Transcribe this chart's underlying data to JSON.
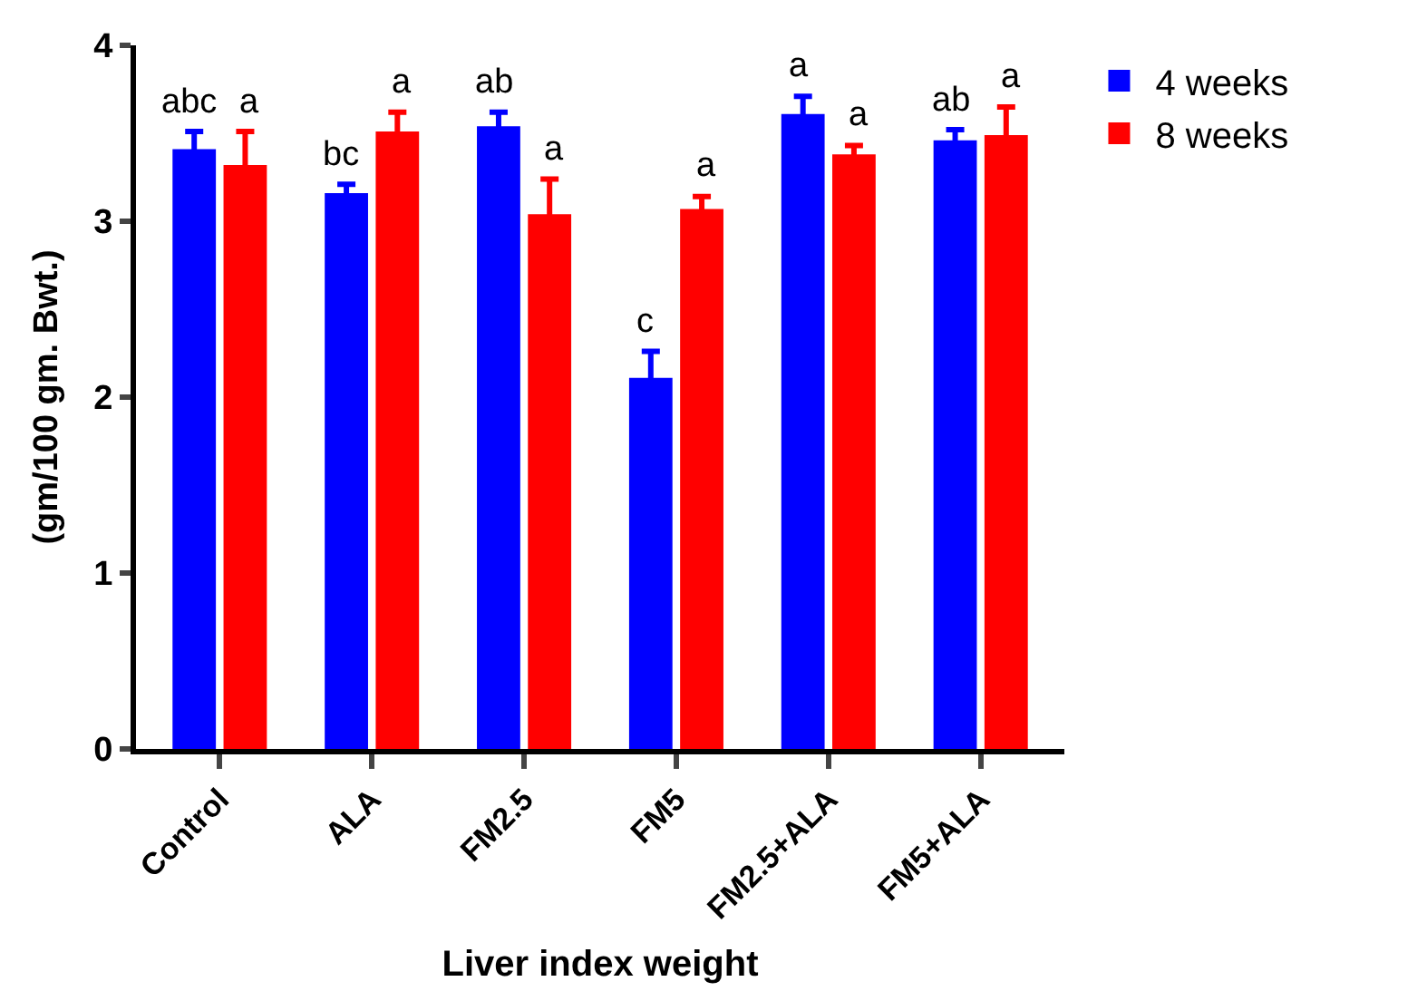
{
  "chart_data": {
    "type": "bar",
    "xlabel": "Liver index weight",
    "ylabel": "(gm/100 gm. Bwt.)",
    "categories": [
      "Control",
      "ALA",
      "FM2.5",
      "FM5",
      "FM2.5+ALA",
      "FM5+ALA"
    ],
    "series": [
      {
        "name": "4 weeks",
        "color": "#0000ff",
        "values": [
          3.41,
          3.16,
          3.54,
          2.11,
          3.61,
          3.46
        ],
        "errors": [
          0.1,
          0.05,
          0.08,
          0.15,
          0.1,
          0.06
        ]
      },
      {
        "name": "8 weeks",
        "color": "#ff0000",
        "values": [
          3.32,
          3.51,
          3.04,
          3.07,
          3.38,
          3.49
        ],
        "errors": [
          0.19,
          0.11,
          0.2,
          0.07,
          0.05,
          0.16
        ]
      }
    ],
    "ylim": [
      0,
      4
    ],
    "yticks": [
      0,
      1,
      2,
      3,
      4
    ],
    "legend": "top right",
    "annotations": [
      "abc",
      "a",
      "bc",
      "a",
      "ab",
      "a",
      "c",
      "a",
      "a",
      "a",
      "ab",
      "a"
    ]
  }
}
